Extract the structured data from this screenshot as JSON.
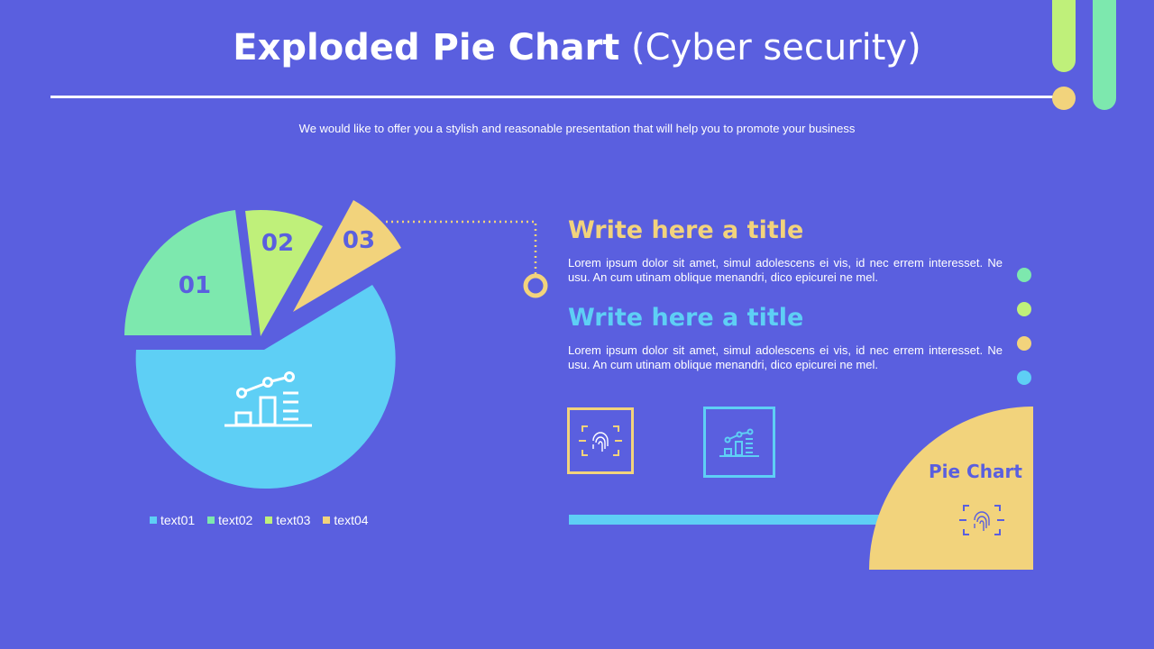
{
  "header": {
    "title_bold": "Exploded Pie Chart",
    "title_light": "(Cyber security)",
    "subtitle": "We would like to offer you a stylish and reasonable presentation that will help you to promote your business"
  },
  "colors": {
    "background": "#5a5fdf",
    "blue": "#5ecff5",
    "green": "#7de8ae",
    "lime": "#bff07a",
    "yellow": "#f2d37c"
  },
  "chart_data": {
    "type": "pie",
    "exploded": true,
    "slices": [
      {
        "label": "01",
        "value": 22,
        "color": "#7de8ae"
      },
      {
        "label": "02",
        "value": 8,
        "color": "#bff07a"
      },
      {
        "label": "03",
        "value": 6,
        "color": "#f2d37c"
      },
      {
        "label": "",
        "value": 64,
        "color": "#5ecff5"
      }
    ],
    "legend": [
      {
        "label": "text01",
        "color": "#5ecff5"
      },
      {
        "label": "text02",
        "color": "#7de8ae"
      },
      {
        "label": "text03",
        "color": "#bff07a"
      },
      {
        "label": "text04",
        "color": "#f2d37c"
      }
    ],
    "center_icon": "bar-chart-growth-icon"
  },
  "blocks": [
    {
      "title": "Write here a title",
      "title_color": "#f2d37c",
      "body": "Lorem ipsum dolor sit amet, simul adolescens ei vis, id nec errem interesset. Ne usu. An cum utinam oblique menandri, dico epicurei ne mel."
    },
    {
      "title": "Write here a title",
      "title_color": "#5ecff5",
      "body": "Lorem ipsum dolor sit amet, simul adolescens ei vis, id nec errem interesset. Ne usu. An cum utinam oblique menandri, dico epicurei ne mel."
    }
  ],
  "icons": {
    "box1": "fingerprint-scan-icon",
    "box2": "bar-chart-growth-icon",
    "quarter": "fingerprint-scan-icon"
  },
  "quarter": {
    "label": "Pie Chart"
  }
}
